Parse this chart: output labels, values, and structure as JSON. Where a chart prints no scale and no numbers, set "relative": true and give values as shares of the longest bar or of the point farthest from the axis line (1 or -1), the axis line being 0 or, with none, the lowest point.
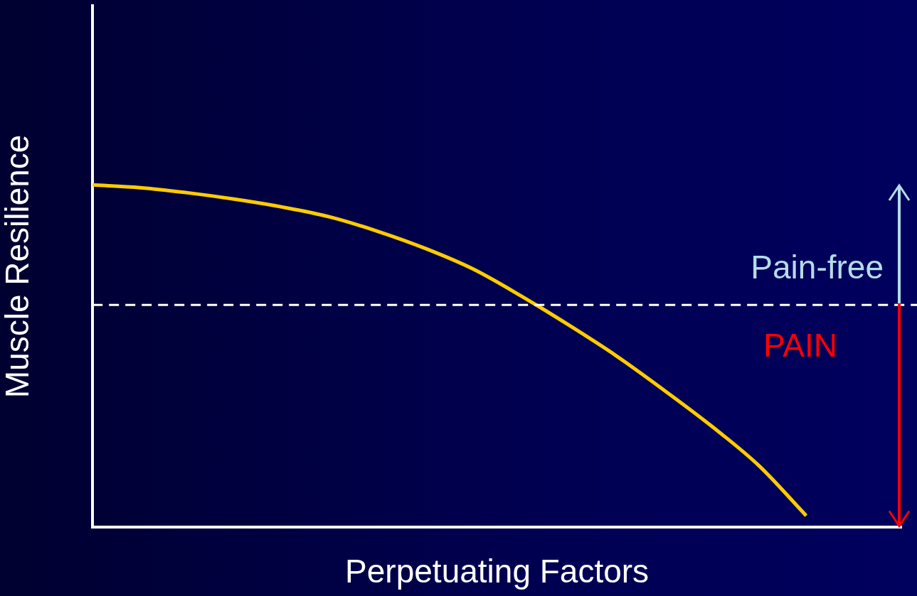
{
  "chart_data": {
    "type": "line",
    "relative": true,
    "xlabel": "Perpetuating Factors",
    "ylabel": "Muscle Resilience",
    "categories": [
      null,
      null,
      null,
      null,
      null,
      null,
      null,
      null,
      null,
      null,
      null,
      null,
      null,
      null,
      null,
      null,
      null,
      null
    ],
    "series": [
      {
        "color": "#ffcc00",
        "values": [
          1,
          0.992,
          0.977,
          0.958,
          0.935,
          0.906,
          0.864,
          0.814,
          0.754,
          0.676,
          0.591,
          0.501,
          0.401,
          0.296,
          0.18,
          0.033,
          null,
          null
        ]
      }
    ],
    "ref_lines": [
      {
        "axis": "y",
        "value": 0.649,
        "color": "#ffffff",
        "line_style": "dashed"
      }
    ],
    "annotations": [
      "Pain-free",
      "PAIN"
    ],
    "grid": false,
    "legend": false,
    "marker": "none",
    "line_style": "solid"
  }
}
